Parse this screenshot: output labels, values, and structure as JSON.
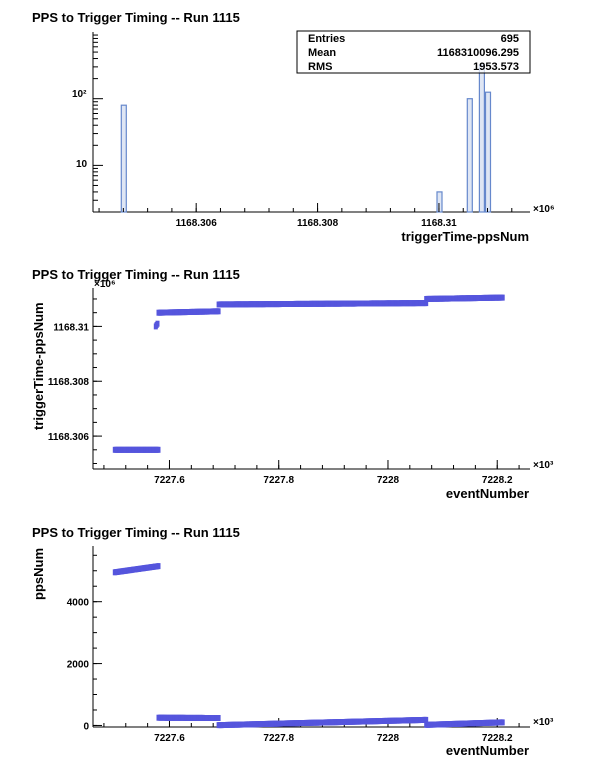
{
  "chart_data": [
    {
      "type": "bar",
      "title": "PPS to Trigger Timing -- Run 1115",
      "xlabel": "triggerTime-ppsNum",
      "ylabel": "",
      "x_multiplier": "×10⁶",
      "yscale": "log",
      "xlim": [
        1168.3043,
        1168.3115
      ],
      "ylim": [
        2,
        1000
      ],
      "xticks": [
        1168.306,
        1168.308,
        1168.31
      ],
      "xtick_labels": [
        "1168.306",
        "1168.308",
        "1168.31"
      ],
      "ytick_labels": [
        "10",
        "10²"
      ],
      "stats": {
        "rows": [
          {
            "label": "Entries",
            "value": "695"
          },
          {
            "label": "Mean",
            "value": "1168310096.295"
          },
          {
            "label": "RMS",
            "value": "1953.573"
          }
        ]
      },
      "bars": [
        {
          "x": 1168.3048,
          "value": 80
        },
        {
          "x": 1168.31,
          "value": 4
        },
        {
          "x": 1168.3105,
          "value": 100
        },
        {
          "x": 1168.3107,
          "value": 320
        },
        {
          "x": 1168.3108,
          "value": 125
        }
      ],
      "color": "#6688cc"
    },
    {
      "type": "scatter",
      "title": "PPS to Trigger Timing -- Run 1115",
      "xlabel": "eventNumber",
      "ylabel": "triggerTime-ppsNum",
      "x_multiplier": "×10³",
      "y_multiplier": "×10⁶",
      "xlim": [
        7227.46,
        7228.26
      ],
      "ylim": [
        1168.3048,
        1168.3114
      ],
      "xticks": [
        7227.6,
        7227.8,
        7228,
        7228.2
      ],
      "xtick_labels": [
        "7227.6",
        "7227.8",
        "7228",
        "7228.2"
      ],
      "yticks": [
        1168.306,
        1168.308,
        1168.31
      ],
      "ytick_labels": [
        "1168.306",
        "1168.308",
        "1168.31"
      ],
      "segments": [
        {
          "x0": 7227.5,
          "x1": 7227.58,
          "y0": 1168.3055,
          "y1": 1168.3055
        },
        {
          "x0": 7227.575,
          "x1": 7227.578,
          "y0": 1168.31,
          "y1": 1168.3101
        },
        {
          "x0": 7227.58,
          "x1": 7227.69,
          "y0": 1168.3105,
          "y1": 1168.31055
        },
        {
          "x0": 7227.69,
          "x1": 7228.07,
          "y0": 1168.3108,
          "y1": 1168.31085
        },
        {
          "x0": 7228.07,
          "x1": 7228.21,
          "y0": 1168.311,
          "y1": 1168.31105
        }
      ],
      "color": "#5555dd"
    },
    {
      "type": "scatter",
      "title": "PPS to Trigger Timing -- Run 1115",
      "xlabel": "eventNumber",
      "ylabel": "ppsNum",
      "x_multiplier": "×10³",
      "xlim": [
        7227.46,
        7228.26
      ],
      "ylim": [
        -50,
        5800
      ],
      "xticks": [
        7227.6,
        7227.8,
        7228,
        7228.2
      ],
      "xtick_labels": [
        "7227.6",
        "7227.8",
        "7228",
        "7228.2"
      ],
      "yticks": [
        0,
        2000,
        4000
      ],
      "ytick_labels": [
        "0",
        "2000",
        "4000"
      ],
      "segments": [
        {
          "x0": 7227.5,
          "x1": 7227.58,
          "y0": 4950,
          "y1": 5150
        },
        {
          "x0": 7227.58,
          "x1": 7227.69,
          "y0": 250,
          "y1": 240
        },
        {
          "x0": 7227.69,
          "x1": 7228.07,
          "y0": 10,
          "y1": 180
        },
        {
          "x0": 7228.07,
          "x1": 7228.21,
          "y0": 20,
          "y1": 100
        }
      ],
      "color": "#5555dd"
    }
  ]
}
